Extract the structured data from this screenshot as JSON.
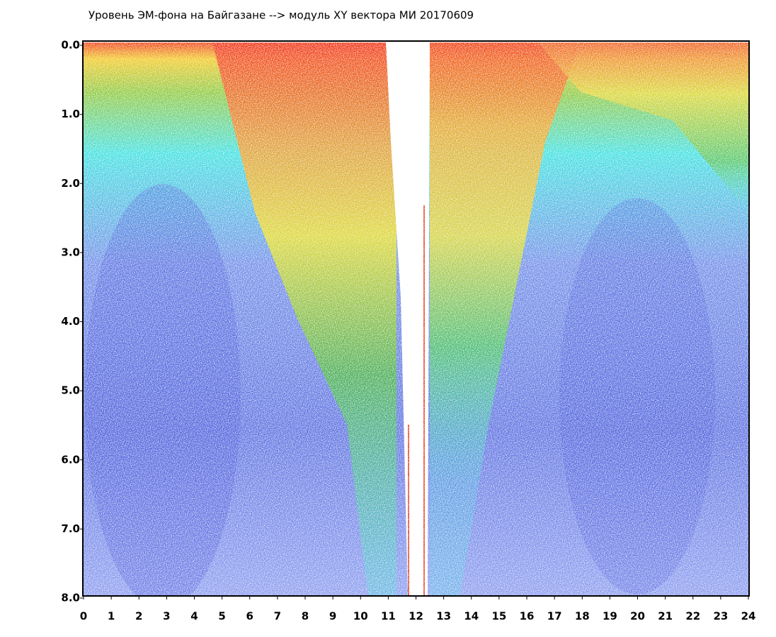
{
  "chart_data": {
    "type": "dot-density",
    "title": "Уровень ЭМ-фона на Байгазане   -->  модуль XY вектора МИ  20170609",
    "xlim": [
      0,
      24
    ],
    "xticks": [
      0,
      1,
      2,
      3,
      4,
      5,
      6,
      7,
      8,
      9,
      10,
      11,
      12,
      13,
      14,
      15,
      16,
      17,
      18,
      19,
      20,
      21,
      22,
      23,
      24
    ],
    "ylim": [
      0,
      8
    ],
    "y_inverted": true,
    "yticks": [
      {
        "value": 0,
        "label": "0.0"
      },
      {
        "value": 1,
        "label": "1.0"
      },
      {
        "value": 2,
        "label": "2.0"
      },
      {
        "value": 3,
        "label": "3.0"
      },
      {
        "value": 4,
        "label": "4.0"
      },
      {
        "value": 5,
        "label": "5.0"
      },
      {
        "value": 6,
        "label": "6.0"
      },
      {
        "value": 7,
        "label": "7.0"
      },
      {
        "value": 8,
        "label": "8.0"
      }
    ]
  }
}
